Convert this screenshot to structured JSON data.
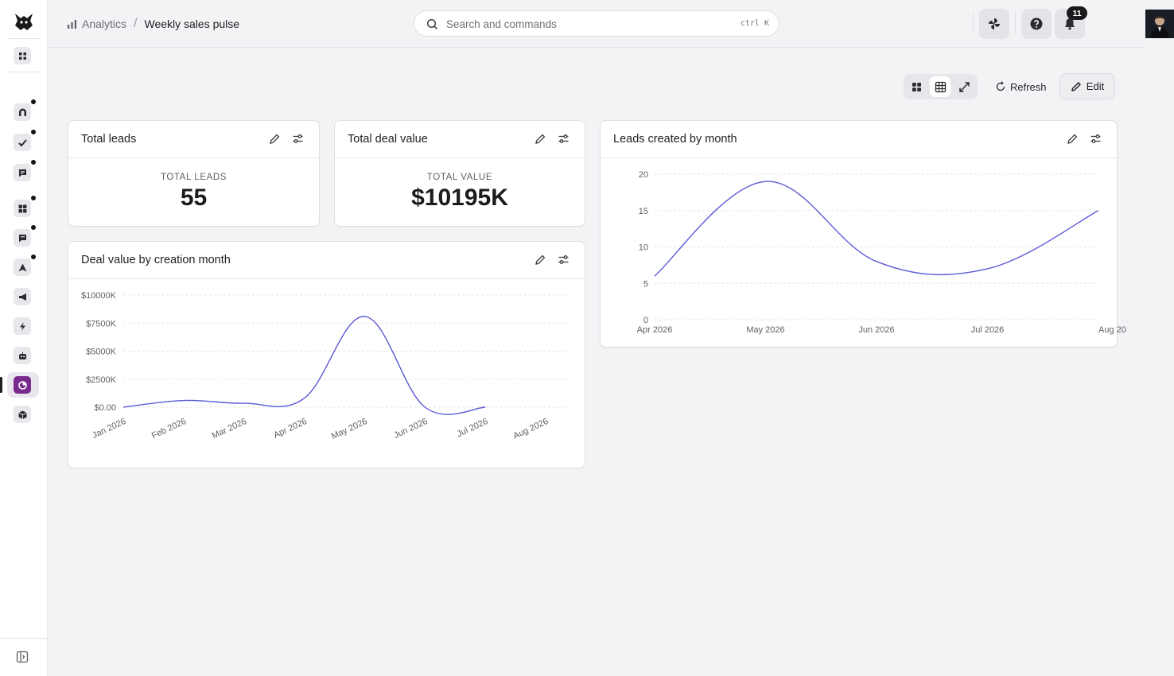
{
  "app": {
    "breadcrumb": [
      "Analytics",
      "Weekly sales pulse"
    ]
  },
  "search": {
    "placeholder": "Search and commands",
    "shortcut": "ctrl K"
  },
  "topbar": {
    "notification_count": "11"
  },
  "sidebar": {
    "items": [
      {
        "icon": "grid-icon",
        "dot": false
      },
      {
        "icon": "magnet-icon",
        "dot": true
      },
      {
        "icon": "check-icon",
        "dot": true
      },
      {
        "icon": "chat-icon",
        "dot": true
      },
      {
        "icon": "apps-icon",
        "dot": true
      },
      {
        "icon": "message-icon",
        "dot": true
      },
      {
        "icon": "navigation-icon",
        "dot": true
      },
      {
        "icon": "megaphone-icon",
        "dot": false
      },
      {
        "icon": "lightning-icon",
        "dot": false
      },
      {
        "icon": "robot-icon",
        "dot": false
      },
      {
        "icon": "analytics-icon",
        "dot": false,
        "active": true
      },
      {
        "icon": "cube-icon",
        "dot": false
      }
    ]
  },
  "toolbar": {
    "refresh_label": "Refresh",
    "edit_label": "Edit"
  },
  "cards": {
    "total_leads": {
      "title": "Total leads",
      "label": "TOTAL LEADS",
      "value": "55"
    },
    "total_deal_value": {
      "title": "Total deal value",
      "label": "TOTAL VALUE",
      "value": "$10195K"
    },
    "leads_by_month": {
      "title": "Leads created by month"
    },
    "deal_value_by_month": {
      "title": "Deal value by creation month"
    }
  },
  "colors": {
    "line": "#5b5bd6",
    "accent": "#7a2a8f"
  },
  "chart_data": [
    {
      "type": "line",
      "title": "Leads created by month",
      "x": [
        "Apr 2026",
        "May 2026",
        "Jun 2026",
        "Jul 2026",
        "Aug 20"
      ],
      "values": [
        6,
        19,
        8,
        7,
        15
      ],
      "ylim": [
        0,
        20
      ],
      "yticks": [
        "0",
        "5",
        "10",
        "15",
        "20"
      ],
      "grid": true
    },
    {
      "type": "line",
      "title": "Deal value by creation month",
      "x": [
        "Jan 2026",
        "Feb 2026",
        "Mar 2026",
        "Apr 2026",
        "May 2026",
        "Jun 2026",
        "Jul 2026",
        "Aug 2026"
      ],
      "values": [
        0,
        600,
        350,
        800,
        8100,
        0,
        0,
        null
      ],
      "ylim": [
        0,
        10000
      ],
      "yticks": [
        "$0.00",
        "$2500K",
        "$5000K",
        "$7500K",
        "$10000K"
      ],
      "grid": true
    }
  ]
}
